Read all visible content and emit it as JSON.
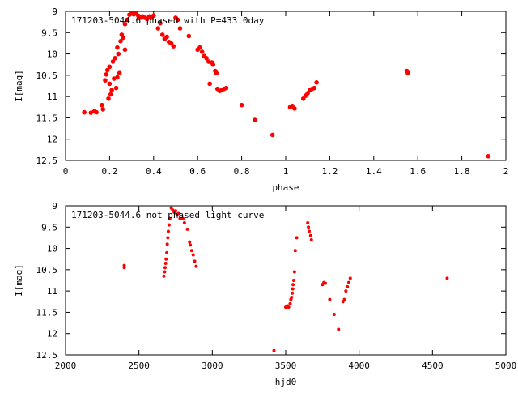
{
  "chart_data": [
    {
      "type": "scatter",
      "title": "171203-5044.6 phased with P=433.0day",
      "xlabel": "phase",
      "ylabel": "I[mag]",
      "xlim": [
        0,
        2
      ],
      "ylim": [
        12.5,
        9
      ],
      "y_inverted": true,
      "grid": false,
      "xticks": [
        "0",
        "0.2",
        "0.4",
        "0.6",
        "0.8",
        "1",
        "1.2",
        "1.4",
        "1.6",
        "1.8",
        "2"
      ],
      "yticks": [
        "9",
        "9.5",
        "10",
        "10.5",
        "11",
        "11.5",
        "12",
        "12.5"
      ],
      "point_color": "#ff0000",
      "series": [
        {
          "points": [
            [
              0.085,
              11.37
            ],
            [
              0.115,
              11.38
            ],
            [
              0.13,
              11.35
            ],
            [
              0.14,
              11.37
            ],
            [
              0.165,
              11.2
            ],
            [
              0.17,
              11.3
            ],
            [
              0.18,
              10.62
            ],
            [
              0.185,
              10.48
            ],
            [
              0.19,
              10.38
            ],
            [
              0.195,
              11.05
            ],
            [
              0.2,
              10.7
            ],
            [
              0.2,
              10.3
            ],
            [
              0.205,
              10.95
            ],
            [
              0.21,
              10.85
            ],
            [
              0.215,
              10.18
            ],
            [
              0.22,
              10.58
            ],
            [
              0.225,
              10.1
            ],
            [
              0.23,
              10.8
            ],
            [
              0.235,
              9.85
            ],
            [
              0.235,
              10.55
            ],
            [
              0.24,
              10.0
            ],
            [
              0.245,
              10.45
            ],
            [
              0.25,
              9.7
            ],
            [
              0.255,
              9.55
            ],
            [
              0.26,
              9.62
            ],
            [
              0.27,
              9.3
            ],
            [
              0.27,
              9.9
            ],
            [
              0.28,
              9.2
            ],
            [
              0.29,
              9.08
            ],
            [
              0.3,
              9.05
            ],
            [
              0.31,
              9.07
            ],
            [
              0.32,
              9.05
            ],
            [
              0.33,
              9.1
            ],
            [
              0.34,
              9.15
            ],
            [
              0.35,
              9.12
            ],
            [
              0.36,
              9.15
            ],
            [
              0.37,
              9.18
            ],
            [
              0.38,
              9.12
            ],
            [
              0.39,
              9.15
            ],
            [
              0.4,
              9.1
            ],
            [
              0.42,
              9.4
            ],
            [
              0.43,
              9.28
            ],
            [
              0.44,
              9.55
            ],
            [
              0.45,
              9.65
            ],
            [
              0.46,
              9.6
            ],
            [
              0.47,
              9.72
            ],
            [
              0.48,
              9.75
            ],
            [
              0.49,
              9.82
            ],
            [
              0.5,
              9.15
            ],
            [
              0.51,
              9.2
            ],
            [
              0.52,
              9.4
            ],
            [
              0.56,
              9.58
            ],
            [
              0.6,
              9.9
            ],
            [
              0.61,
              9.85
            ],
            [
              0.62,
              9.95
            ],
            [
              0.63,
              10.05
            ],
            [
              0.64,
              10.1
            ],
            [
              0.65,
              10.18
            ],
            [
              0.655,
              10.7
            ],
            [
              0.665,
              10.2
            ],
            [
              0.67,
              10.25
            ],
            [
              0.68,
              10.4
            ],
            [
              0.685,
              10.45
            ],
            [
              0.69,
              10.82
            ],
            [
              0.7,
              10.87
            ],
            [
              0.71,
              10.85
            ],
            [
              0.72,
              10.82
            ],
            [
              0.73,
              10.8
            ],
            [
              0.8,
              11.2
            ],
            [
              0.86,
              11.55
            ],
            [
              0.94,
              11.9
            ],
            [
              1.02,
              11.25
            ],
            [
              1.03,
              11.22
            ],
            [
              1.04,
              11.28
            ],
            [
              1.08,
              11.05
            ],
            [
              1.09,
              10.98
            ],
            [
              1.1,
              10.92
            ],
            [
              1.11,
              10.85
            ],
            [
              1.12,
              10.82
            ],
            [
              1.13,
              10.8
            ],
            [
              1.14,
              10.67
            ],
            [
              1.55,
              10.4
            ],
            [
              1.555,
              10.45
            ],
            [
              1.92,
              12.4
            ]
          ]
        }
      ]
    },
    {
      "type": "scatter",
      "title": "171203-5044.6 not phased light curve",
      "xlabel": "hjd0",
      "ylabel": "I[mag]",
      "xlim": [
        2000,
        5000
      ],
      "ylim": [
        12.5,
        9
      ],
      "y_inverted": true,
      "grid": false,
      "xticks": [
        "2000",
        "2500",
        "3000",
        "3500",
        "4000",
        "4500",
        "5000"
      ],
      "yticks": [
        "9",
        "9.5",
        "10",
        "10.5",
        "11",
        "11.5",
        "12",
        "12.5"
      ],
      "point_color": "#ff0000",
      "series": [
        {
          "points": [
            [
              2400,
              10.4
            ],
            [
              2400,
              10.45
            ],
            [
              2670,
              10.65
            ],
            [
              2675,
              10.55
            ],
            [
              2678,
              10.45
            ],
            [
              2682,
              10.35
            ],
            [
              2685,
              10.25
            ],
            [
              2690,
              10.1
            ],
            [
              2693,
              9.9
            ],
            [
              2697,
              9.75
            ],
            [
              2700,
              9.6
            ],
            [
              2705,
              9.45
            ],
            [
              2710,
              9.3
            ],
            [
              2720,
              9.05
            ],
            [
              2730,
              9.1
            ],
            [
              2740,
              9.15
            ],
            [
              2750,
              9.12
            ],
            [
              2760,
              9.2
            ],
            [
              2770,
              9.18
            ],
            [
              2780,
              9.3
            ],
            [
              2800,
              9.3
            ],
            [
              2810,
              9.4
            ],
            [
              2830,
              9.55
            ],
            [
              2845,
              9.85
            ],
            [
              2850,
              9.92
            ],
            [
              2860,
              10.05
            ],
            [
              2870,
              10.15
            ],
            [
              2880,
              10.3
            ],
            [
              2890,
              10.42
            ],
            [
              3420,
              12.4
            ],
            [
              3500,
              11.38
            ],
            [
              3510,
              11.35
            ],
            [
              3520,
              11.38
            ],
            [
              3530,
              11.3
            ],
            [
              3535,
              11.2
            ],
            [
              3540,
              11.15
            ],
            [
              3545,
              11.05
            ],
            [
              3548,
              10.95
            ],
            [
              3550,
              10.85
            ],
            [
              3555,
              10.75
            ],
            [
              3560,
              10.55
            ],
            [
              3565,
              10.05
            ],
            [
              3575,
              9.75
            ],
            [
              3650,
              9.4
            ],
            [
              3655,
              9.5
            ],
            [
              3660,
              9.6
            ],
            [
              3670,
              9.7
            ],
            [
              3675,
              9.8
            ],
            [
              3750,
              10.85
            ],
            [
              3760,
              10.8
            ],
            [
              3770,
              10.82
            ],
            [
              3800,
              11.2
            ],
            [
              3830,
              11.55
            ],
            [
              3860,
              11.9
            ],
            [
              3890,
              11.25
            ],
            [
              3900,
              11.2
            ],
            [
              3910,
              11.0
            ],
            [
              3920,
              10.9
            ],
            [
              3930,
              10.8
            ],
            [
              3940,
              10.7
            ],
            [
              4600,
              10.7
            ]
          ]
        }
      ]
    }
  ]
}
